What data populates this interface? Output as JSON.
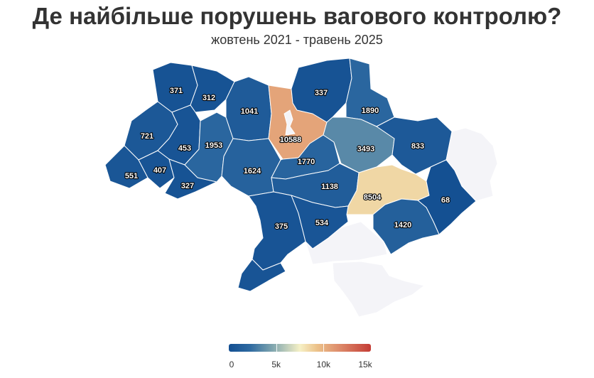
{
  "title": "Де найбільше порушень вагового контролю?",
  "subtitle": "жовтень 2021 - травень 2025",
  "colors": {
    "low": "#134f92",
    "mid": "#f6f1c6",
    "high": "#c43c35",
    "no_data": "#f4f4f8"
  },
  "legend": {
    "min": 0,
    "max": 15000,
    "ticks": [
      {
        "value": 0,
        "label": "0"
      },
      {
        "value": 5000,
        "label": "5k"
      },
      {
        "value": 10000,
        "label": "10k"
      },
      {
        "value": 15000,
        "label": "15k"
      }
    ]
  },
  "regions": [
    {
      "value": 371
    },
    {
      "value": 312
    },
    {
      "value": 721
    },
    {
      "value": 453
    },
    {
      "value": 551
    },
    {
      "value": 407
    },
    {
      "value": 327
    },
    {
      "value": 1953
    },
    {
      "value": 1041
    },
    {
      "value": 1624
    },
    {
      "value": 10588
    },
    {
      "value": 1770
    },
    {
      "value": 337
    },
    {
      "value": 1890
    },
    {
      "value": 3493
    },
    {
      "value": 833
    },
    {
      "value": 1138
    },
    {
      "value": 8504
    },
    {
      "value": 68
    },
    {
      "value": 375
    },
    {
      "value": 534
    },
    {
      "value": 1420
    }
  ]
}
